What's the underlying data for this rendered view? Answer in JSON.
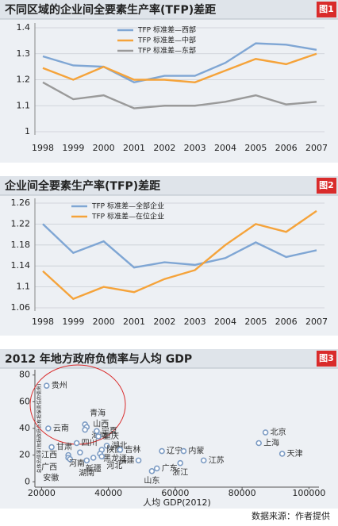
{
  "chart_data": [
    {
      "type": "line",
      "title": "不同区域的企业间全要素生产率(TFP)差距",
      "badge": "图1",
      "categories": [
        "1998",
        "1999",
        "2000",
        "2001",
        "2002",
        "2003",
        "2004",
        "2005",
        "2006",
        "2007"
      ],
      "series": [
        {
          "name": "TFP 标准差—西部",
          "color": "#7fa6d4",
          "values": [
            1.29,
            1.255,
            1.25,
            1.19,
            1.215,
            1.215,
            1.265,
            1.34,
            1.335,
            1.315
          ]
        },
        {
          "name": "TFP 标准差—中部",
          "color": "#f5a33a",
          "values": [
            1.245,
            1.2,
            1.25,
            1.2,
            1.2,
            1.19,
            1.235,
            1.28,
            1.26,
            1.3
          ]
        },
        {
          "name": "TFP 标准差—东部",
          "color": "#9a9a9a",
          "values": [
            1.19,
            1.125,
            1.14,
            1.09,
            1.1,
            1.1,
            1.115,
            1.14,
            1.105,
            1.115
          ]
        }
      ],
      "ylim": [
        1,
        1.4
      ],
      "yticks": [
        1,
        1.1,
        1.2,
        1.3,
        1.4
      ],
      "grid": true
    },
    {
      "type": "line",
      "title": "企业间全要素生产率(TFP)差距",
      "badge": "图2",
      "categories": [
        "1998",
        "1999",
        "2000",
        "2001",
        "2002",
        "2003",
        "2004",
        "2005",
        "2006",
        "2007"
      ],
      "series": [
        {
          "name": "TFP 标准差—全部企业",
          "color": "#7fa6d4",
          "values": [
            1.22,
            1.165,
            1.187,
            1.137,
            1.147,
            1.142,
            1.155,
            1.185,
            1.157,
            1.17
          ]
        },
        {
          "name": "TFP 标准差—在位企业",
          "color": "#f5a33a",
          "values": [
            1.13,
            1.077,
            1.1,
            1.09,
            1.115,
            1.132,
            1.18,
            1.22,
            1.205,
            1.245
          ]
        }
      ],
      "ylim": [
        1.06,
        1.26
      ],
      "yticks": [
        1.06,
        1.1,
        1.14,
        1.18,
        1.22,
        1.26
      ],
      "grid": true
    },
    {
      "type": "scatter",
      "title": "2012 年地方政府负债率与人均 GDP",
      "badge": "图3",
      "x_label": "人均 GDP(2012)",
      "y_label": "总体负债率(包括政府负有担保责任的债务)",
      "color": "#7d9cc4",
      "point_labels": [
        "贵州",
        "云南",
        "甘肃",
        "江西",
        "广西",
        "安徽",
        "四川",
        "河南",
        "青海",
        "山西",
        "海南",
        "宁夏",
        "重庆",
        "湖北",
        "陕西",
        "吉林",
        "黑龙江",
        "新疆",
        "湖南",
        "河北",
        "辽宁",
        "内蒙",
        "福建",
        "广东",
        "山东",
        "浙江",
        "江苏",
        "北京",
        "上海",
        "天津"
      ],
      "x": [
        21500,
        22000,
        23000,
        28000,
        28000,
        28500,
        30500,
        31500,
        33000,
        33500,
        33000,
        36500,
        37000,
        39500,
        38000,
        43500,
        37500,
        35500,
        33500,
        38000,
        56000,
        62500,
        49000,
        54500,
        53000,
        61500,
        68500,
        87000,
        85000,
        92000
      ],
      "values": [
        72,
        40,
        26,
        20,
        18,
        17,
        29,
        22,
        43,
        41,
        39,
        38,
        34,
        27,
        24,
        24,
        21,
        18,
        16,
        19,
        23,
        23,
        16,
        10,
        8,
        14,
        16,
        37,
        29,
        21
      ],
      "xlim": [
        18000,
        103000
      ],
      "xticks": [
        20000,
        40000,
        60000,
        80000,
        100000
      ],
      "ylim": [
        -4,
        84
      ],
      "yticks": [
        0,
        20,
        40,
        60,
        80
      ]
    }
  ],
  "source": "数据来源：作者提供"
}
